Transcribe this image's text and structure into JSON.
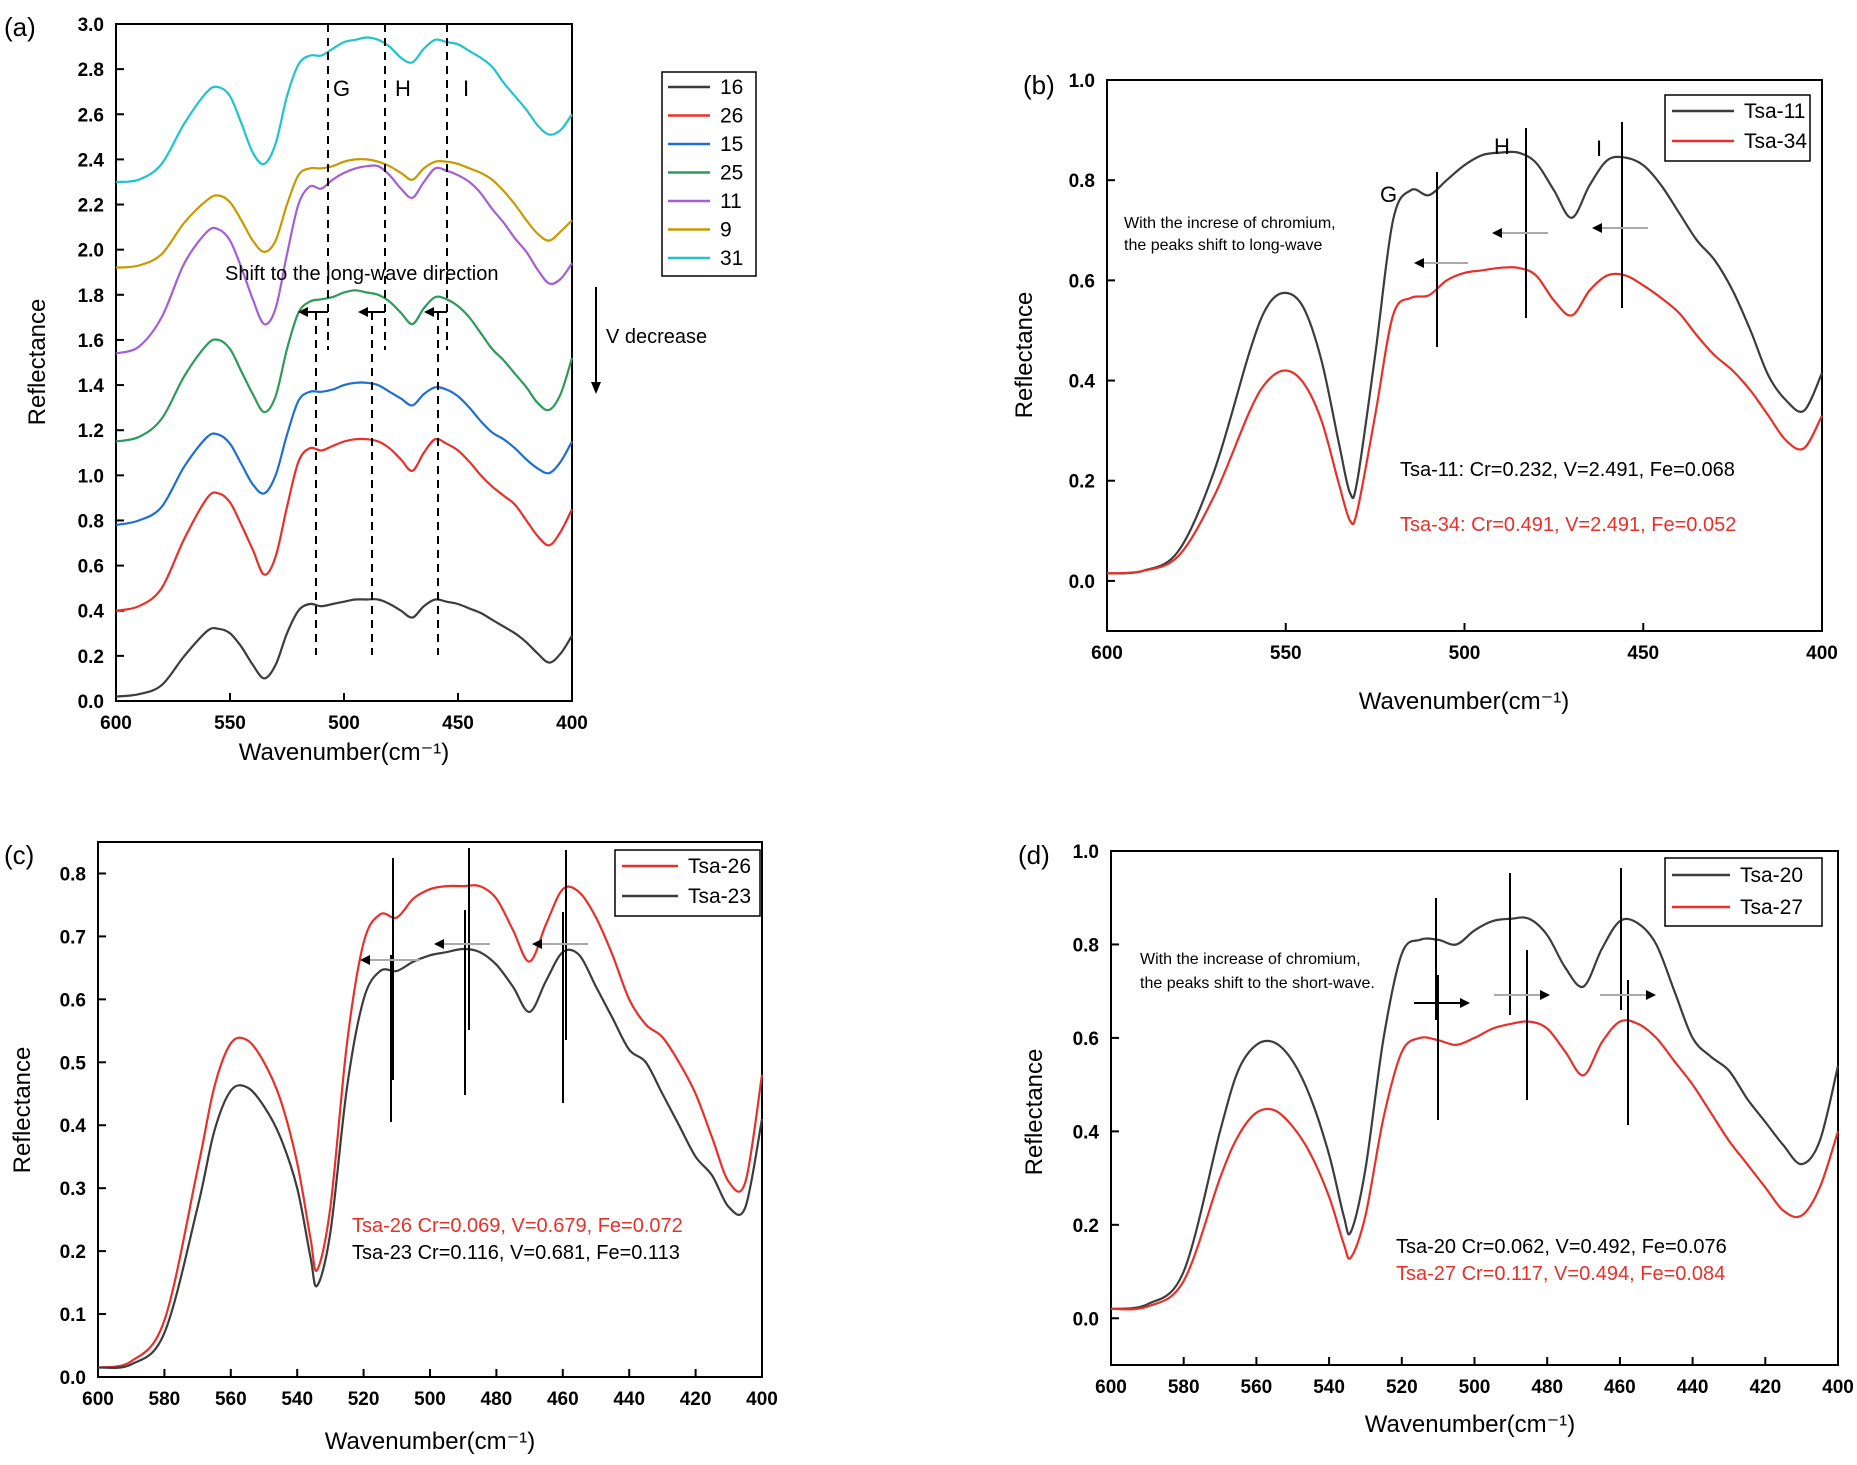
{
  "panels": [
    {
      "letter": "(a)",
      "xlabel": "Wavenumber(cm⁻¹)",
      "ylabel": "Reflectance",
      "xlim": [
        600,
        400
      ],
      "ylim": [
        0.0,
        3.0
      ],
      "xticks": [
        "600",
        "550",
        "500",
        "450",
        "400"
      ],
      "yticks": [
        "0.0",
        "0.2",
        "0.4",
        "0.6",
        "0.8",
        "1.0",
        "1.2",
        "1.4",
        "1.6",
        "1.8",
        "2.0",
        "2.2",
        "2.4",
        "2.6",
        "2.8",
        "3.0"
      ],
      "legend": [
        "16",
        "26",
        "15",
        "25",
        "11",
        "9",
        "31"
      ],
      "peak_letters": [
        "G",
        "H",
        "I"
      ],
      "shift_text": "Shift to the long-wave direction",
      "v_text": "V decrease"
    },
    {
      "letter": "(b)",
      "xlabel": "Wavenumber(cm⁻¹)",
      "ylabel": "Reflectance",
      "xlim": [
        600,
        400
      ],
      "ylim": [
        0.0,
        1.0
      ],
      "xticks": [
        "600",
        "550",
        "500",
        "450",
        "400"
      ],
      "yticks": [
        "0.0",
        "0.2",
        "0.4",
        "0.6",
        "0.8",
        "1.0"
      ],
      "legend": [
        "Tsa-11",
        "Tsa-34"
      ],
      "peak_letters": [
        "G",
        "H",
        "I"
      ],
      "note_line1": "With the increse of chromium,",
      "note_line2": "the peaks shift to long-wave",
      "comp1": "Tsa-11: Cr=0.232, V=2.491, Fe=0.068",
      "comp2": "Tsa-34: Cr=0.491, V=2.491, Fe=0.052"
    },
    {
      "letter": "(c)",
      "xlabel": "Wavenumber(cm⁻¹)",
      "ylabel": "Reflectance",
      "xlim": [
        600,
        400
      ],
      "ylim": [
        0.0,
        0.8
      ],
      "xticks": [
        "600",
        "580",
        "560",
        "540",
        "520",
        "500",
        "480",
        "460",
        "440",
        "420",
        "400"
      ],
      "yticks": [
        "0.0",
        "0.1",
        "0.2",
        "0.3",
        "0.4",
        "0.5",
        "0.6",
        "0.7",
        "0.8"
      ],
      "legend": [
        "Tsa-26",
        "Tsa-23"
      ],
      "comp1": "Tsa-26  Cr=0.069, V=0.679, Fe=0.072",
      "comp2": "Tsa-23  Cr=0.116, V=0.681, Fe=0.113"
    },
    {
      "letter": "(d)",
      "xlabel": "Wavenumber(cm⁻¹)",
      "ylabel": "Reflectance",
      "xlim": [
        600,
        400
      ],
      "ylim": [
        0.0,
        1.0
      ],
      "xticks": [
        "600",
        "580",
        "560",
        "540",
        "520",
        "500",
        "480",
        "460",
        "440",
        "420",
        "400"
      ],
      "yticks": [
        "0.0",
        "0.2",
        "0.4",
        "0.6",
        "0.8",
        "1.0"
      ],
      "legend": [
        "Tsa-20",
        "Tsa-27"
      ],
      "note_line1": "With the increase of  chromium,",
      "note_line2": "the peaks shift to the short-wave.",
      "comp1": "Tsa-20  Cr=0.062, V=0.492, Fe=0.076",
      "comp2": "Tsa-27  Cr=0.117, V=0.494, Fe=0.084"
    }
  ],
  "colors": {
    "black": "#3c3c3c",
    "red": "#e8302a",
    "blue": "#1f6fd0",
    "green": "#2e9a5a",
    "purple": "#a35fd6",
    "gold": "#c79a00",
    "cyan": "#20c4cc"
  },
  "chart_data": [
    {
      "type": "line",
      "xlabel": "Wavenumber(cm⁻¹)",
      "ylabel": "Reflectance",
      "xlim": [
        600,
        400
      ],
      "ylim": [
        0.0,
        3.0
      ],
      "x": [
        600,
        590,
        580,
        570,
        560,
        555,
        550,
        545,
        540,
        535,
        530,
        525,
        520,
        515,
        510,
        505,
        500,
        495,
        490,
        485,
        480,
        475,
        470,
        465,
        460,
        455,
        450,
        445,
        440,
        435,
        430,
        425,
        420,
        415,
        410,
        405,
        400
      ],
      "series": [
        {
          "name": "16",
          "y": [
            0.02,
            0.03,
            0.07,
            0.2,
            0.31,
            0.32,
            0.3,
            0.24,
            0.16,
            0.1,
            0.16,
            0.3,
            0.4,
            0.43,
            0.42,
            0.43,
            0.44,
            0.45,
            0.45,
            0.45,
            0.43,
            0.4,
            0.37,
            0.42,
            0.45,
            0.44,
            0.43,
            0.41,
            0.39,
            0.36,
            0.33,
            0.3,
            0.26,
            0.21,
            0.17,
            0.21,
            0.29
          ]
        },
        {
          "name": "26",
          "y": [
            0.4,
            0.42,
            0.5,
            0.72,
            0.9,
            0.92,
            0.88,
            0.78,
            0.67,
            0.56,
            0.64,
            0.86,
            1.06,
            1.12,
            1.11,
            1.13,
            1.15,
            1.16,
            1.16,
            1.15,
            1.12,
            1.07,
            1.02,
            1.1,
            1.16,
            1.14,
            1.11,
            1.06,
            1.0,
            0.95,
            0.91,
            0.87,
            0.8,
            0.73,
            0.69,
            0.75,
            0.85
          ]
        },
        {
          "name": "15",
          "y": [
            0.78,
            0.8,
            0.86,
            1.04,
            1.17,
            1.18,
            1.14,
            1.05,
            0.96,
            0.92,
            1.0,
            1.18,
            1.33,
            1.37,
            1.37,
            1.38,
            1.4,
            1.41,
            1.41,
            1.4,
            1.37,
            1.34,
            1.31,
            1.36,
            1.39,
            1.38,
            1.35,
            1.3,
            1.24,
            1.19,
            1.16,
            1.12,
            1.07,
            1.03,
            1.01,
            1.06,
            1.15
          ]
        },
        {
          "name": "25",
          "y": [
            1.15,
            1.17,
            1.25,
            1.44,
            1.58,
            1.6,
            1.56,
            1.46,
            1.36,
            1.28,
            1.35,
            1.56,
            1.72,
            1.77,
            1.78,
            1.79,
            1.81,
            1.82,
            1.81,
            1.8,
            1.77,
            1.72,
            1.67,
            1.74,
            1.79,
            1.78,
            1.75,
            1.7,
            1.63,
            1.56,
            1.51,
            1.45,
            1.39,
            1.32,
            1.29,
            1.36,
            1.52
          ]
        },
        {
          "name": "11",
          "y": [
            1.54,
            1.57,
            1.7,
            1.94,
            2.08,
            2.09,
            2.04,
            1.92,
            1.78,
            1.67,
            1.74,
            1.98,
            2.2,
            2.28,
            2.27,
            2.31,
            2.34,
            2.36,
            2.37,
            2.37,
            2.33,
            2.27,
            2.23,
            2.3,
            2.36,
            2.35,
            2.33,
            2.3,
            2.25,
            2.18,
            2.12,
            2.05,
            1.99,
            1.91,
            1.85,
            1.87,
            1.94
          ]
        },
        {
          "name": "9",
          "y": [
            1.92,
            1.93,
            1.98,
            2.12,
            2.22,
            2.24,
            2.21,
            2.13,
            2.04,
            1.99,
            2.04,
            2.2,
            2.33,
            2.36,
            2.36,
            2.37,
            2.39,
            2.4,
            2.4,
            2.39,
            2.37,
            2.34,
            2.31,
            2.36,
            2.39,
            2.39,
            2.38,
            2.36,
            2.34,
            2.31,
            2.26,
            2.2,
            2.13,
            2.07,
            2.04,
            2.08,
            2.13
          ]
        },
        {
          "name": "31",
          "y": [
            2.3,
            2.31,
            2.38,
            2.56,
            2.7,
            2.72,
            2.68,
            2.56,
            2.43,
            2.38,
            2.47,
            2.68,
            2.82,
            2.86,
            2.86,
            2.89,
            2.92,
            2.93,
            2.94,
            2.93,
            2.9,
            2.85,
            2.83,
            2.89,
            2.93,
            2.92,
            2.91,
            2.88,
            2.85,
            2.81,
            2.74,
            2.68,
            2.62,
            2.55,
            2.51,
            2.53,
            2.6
          ]
        }
      ]
    },
    {
      "type": "line",
      "xlabel": "Wavenumber(cm⁻¹)",
      "ylabel": "Reflectance",
      "xlim": [
        600,
        400
      ],
      "ylim": [
        -0.1,
        1.0
      ],
      "x": [
        600,
        590,
        580,
        570,
        560,
        555,
        550,
        545,
        540,
        535,
        532,
        530,
        525,
        520,
        515,
        510,
        505,
        500,
        495,
        490,
        485,
        480,
        475,
        470,
        465,
        460,
        455,
        450,
        445,
        440,
        435,
        430,
        425,
        420,
        415,
        410,
        405,
        400
      ],
      "series": [
        {
          "name": "Tsa-11",
          "y": [
            0.015,
            0.02,
            0.06,
            0.22,
            0.46,
            0.55,
            0.575,
            0.545,
            0.44,
            0.27,
            0.175,
            0.2,
            0.45,
            0.72,
            0.78,
            0.77,
            0.8,
            0.83,
            0.85,
            0.855,
            0.855,
            0.835,
            0.78,
            0.725,
            0.79,
            0.84,
            0.845,
            0.83,
            0.79,
            0.735,
            0.68,
            0.64,
            0.58,
            0.5,
            0.41,
            0.36,
            0.34,
            0.415
          ]
        },
        {
          "name": "Tsa-34",
          "y": [
            0.015,
            0.02,
            0.05,
            0.17,
            0.34,
            0.4,
            0.42,
            0.395,
            0.32,
            0.19,
            0.12,
            0.14,
            0.33,
            0.53,
            0.565,
            0.57,
            0.6,
            0.615,
            0.62,
            0.625,
            0.625,
            0.61,
            0.56,
            0.53,
            0.58,
            0.61,
            0.61,
            0.59,
            0.565,
            0.535,
            0.49,
            0.45,
            0.42,
            0.38,
            0.33,
            0.28,
            0.265,
            0.33
          ]
        }
      ]
    },
    {
      "type": "line",
      "xlabel": "Wavenumber(cm⁻¹)",
      "ylabel": "Reflectance",
      "xlim": [
        600,
        400
      ],
      "ylim": [
        0.0,
        0.85
      ],
      "x": [
        600,
        590,
        580,
        570,
        565,
        560,
        555,
        550,
        545,
        540,
        536,
        534,
        530,
        525,
        520,
        515,
        510,
        505,
        500,
        495,
        490,
        485,
        480,
        475,
        470,
        465,
        460,
        455,
        450,
        445,
        440,
        435,
        430,
        425,
        420,
        415,
        410,
        405,
        400
      ],
      "series": [
        {
          "name": "Tsa-26",
          "y": [
            0.015,
            0.025,
            0.09,
            0.33,
            0.46,
            0.53,
            0.535,
            0.5,
            0.44,
            0.34,
            0.22,
            0.17,
            0.27,
            0.53,
            0.69,
            0.735,
            0.73,
            0.76,
            0.775,
            0.78,
            0.78,
            0.78,
            0.76,
            0.71,
            0.66,
            0.72,
            0.775,
            0.77,
            0.73,
            0.67,
            0.6,
            0.56,
            0.54,
            0.5,
            0.45,
            0.38,
            0.31,
            0.31,
            0.48
          ]
        },
        {
          "name": "Tsa-23",
          "y": [
            0.015,
            0.02,
            0.07,
            0.27,
            0.39,
            0.455,
            0.46,
            0.43,
            0.38,
            0.3,
            0.19,
            0.145,
            0.23,
            0.46,
            0.6,
            0.645,
            0.645,
            0.66,
            0.67,
            0.675,
            0.68,
            0.675,
            0.655,
            0.62,
            0.58,
            0.63,
            0.675,
            0.67,
            0.62,
            0.57,
            0.52,
            0.5,
            0.45,
            0.4,
            0.35,
            0.32,
            0.27,
            0.27,
            0.41
          ]
        }
      ]
    },
    {
      "type": "line",
      "xlabel": "Wavenumber(cm⁻¹)",
      "ylabel": "Reflectance",
      "xlim": [
        600,
        400
      ],
      "ylim": [
        -0.1,
        1.0
      ],
      "x": [
        600,
        590,
        580,
        570,
        565,
        560,
        555,
        550,
        545,
        540,
        536,
        534,
        530,
        525,
        520,
        515,
        510,
        505,
        500,
        495,
        490,
        485,
        480,
        475,
        470,
        465,
        460,
        455,
        450,
        445,
        440,
        435,
        430,
        425,
        420,
        415,
        410,
        405,
        400
      ],
      "series": [
        {
          "name": "Tsa-20",
          "y": [
            0.02,
            0.03,
            0.1,
            0.4,
            0.53,
            0.585,
            0.59,
            0.55,
            0.47,
            0.35,
            0.22,
            0.185,
            0.32,
            0.6,
            0.78,
            0.81,
            0.81,
            0.8,
            0.83,
            0.85,
            0.855,
            0.855,
            0.82,
            0.75,
            0.71,
            0.79,
            0.85,
            0.845,
            0.8,
            0.7,
            0.6,
            0.56,
            0.53,
            0.47,
            0.42,
            0.37,
            0.33,
            0.38,
            0.54
          ]
        },
        {
          "name": "Tsa-27",
          "y": [
            0.02,
            0.025,
            0.08,
            0.3,
            0.39,
            0.44,
            0.445,
            0.41,
            0.35,
            0.26,
            0.16,
            0.13,
            0.22,
            0.43,
            0.57,
            0.6,
            0.595,
            0.585,
            0.6,
            0.62,
            0.63,
            0.635,
            0.62,
            0.57,
            0.52,
            0.59,
            0.635,
            0.63,
            0.6,
            0.55,
            0.5,
            0.44,
            0.38,
            0.33,
            0.28,
            0.23,
            0.22,
            0.28,
            0.4
          ]
        }
      ]
    }
  ]
}
